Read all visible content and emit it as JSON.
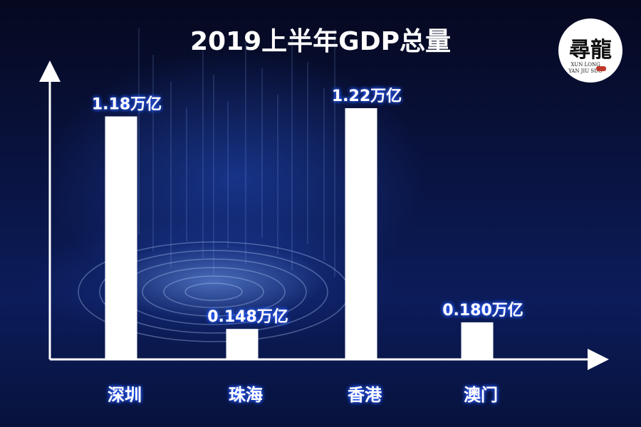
{
  "logo": {
    "mark": "尋龍",
    "line1": "XUN LONG",
    "line2": "YAN JIU SUO"
  },
  "colors": {
    "bar": "#ffffff",
    "label_glow": "#2a5cff",
    "background": "#0a1545"
  },
  "chart_data": {
    "type": "bar",
    "title": "2019上半年GDP总量",
    "categories": [
      "深圳",
      "珠海",
      "香港",
      "澳门"
    ],
    "values": [
      1.18,
      0.148,
      1.22,
      0.18
    ],
    "value_labels": [
      "1.18万亿",
      "0.148万亿",
      "1.22万亿",
      "0.180万亿"
    ],
    "unit": "万亿",
    "ylim": [
      0,
      1.22
    ],
    "grid": false,
    "legend": "none"
  }
}
